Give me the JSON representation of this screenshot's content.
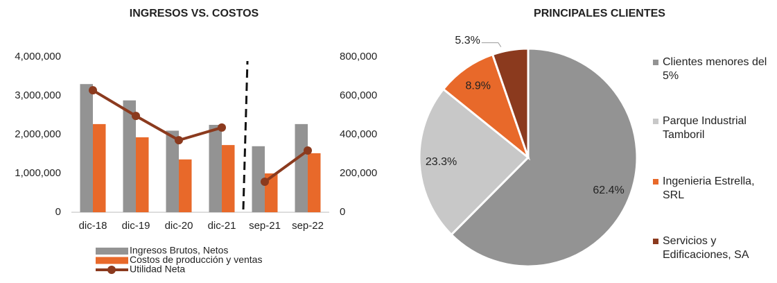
{
  "chart_data": [
    {
      "type": "combo",
      "title": "INGRESOS VS. COSTOS",
      "categories": [
        "dic-18",
        "dic-19",
        "dic-20",
        "dic-21",
        "sep-21",
        "sep-22"
      ],
      "divider_after": "dic-21",
      "series": [
        {
          "name": "Ingresos Brutos, Netos",
          "kind": "bar",
          "color": "#939393",
          "values": [
            3300000,
            2880000,
            2100000,
            2250000,
            1700000,
            2270000
          ]
        },
        {
          "name": "Costos de producción y ventas",
          "kind": "bar",
          "color": "#e8692a",
          "values": [
            2270000,
            1930000,
            1360000,
            1730000,
            1000000,
            1520000
          ]
        },
        {
          "name": "Utilidad Neta",
          "kind": "line",
          "axis": "y2",
          "color": "#8b3a1e",
          "values": [
            628000,
            496000,
            371000,
            436000,
            157000,
            318000
          ]
        }
      ],
      "ylim": [
        0,
        4000000
      ],
      "yticks": [
        0,
        {
          "value": 1000000,
          "label": "1,000,000"
        },
        {
          "value": 2000000,
          "label": "2,000,000"
        },
        {
          "value": 3000000,
          "label": "3,000,000"
        },
        {
          "value": 4000000,
          "label": "4,000,000"
        }
      ],
      "y2lim": [
        0,
        800000
      ],
      "y2ticks": [
        0,
        {
          "value": 200000,
          "label": "200,000"
        },
        {
          "value": 400000,
          "label": "400,000"
        },
        {
          "value": 600000,
          "label": "600,000"
        },
        {
          "value": 800000,
          "label": "800,000"
        }
      ]
    },
    {
      "type": "pie",
      "title": "PRINCIPALES CLIENTES",
      "categories": [
        "Clientes menores del 5%",
        "Parque Industrial Tamboril",
        "Ingenieria Estrella, SRL",
        "Servicios y Edificaciones, SA"
      ],
      "values": [
        62.4,
        23.3,
        8.9,
        5.3
      ],
      "value_labels": [
        "62.4%",
        "23.3%",
        "8.9%",
        "5.3%"
      ],
      "colors": [
        "#939393",
        "#c8c8c8",
        "#e8692a",
        "#8b3a1e"
      ]
    }
  ]
}
